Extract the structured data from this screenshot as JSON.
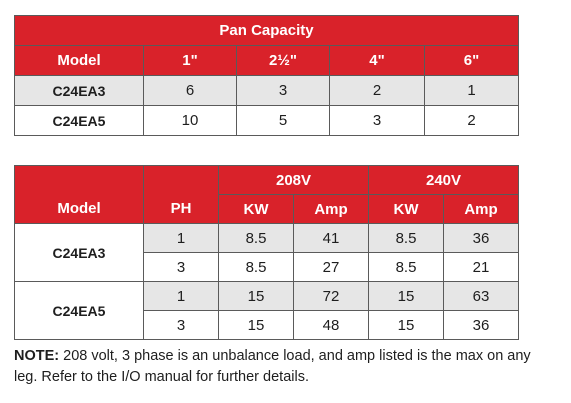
{
  "pan_table": {
    "title": "Pan Capacity",
    "headers": [
      "Model",
      "1\"",
      "2½\"",
      "4\"",
      "6\""
    ],
    "rows": [
      {
        "model": "C24EA3",
        "values": [
          "6",
          "3",
          "2",
          "1"
        ]
      },
      {
        "model": "C24EA5",
        "values": [
          "10",
          "5",
          "3",
          "2"
        ]
      }
    ]
  },
  "elec_table": {
    "voltage_groups": [
      "208V",
      "240V"
    ],
    "headers": {
      "model": "Model",
      "ph": "PH",
      "kw_208": "KW",
      "amp_208": "Amp",
      "kw_240": "KW",
      "amp_240": "Amp"
    },
    "rows": [
      {
        "model": "C24EA3",
        "ph": "1",
        "kw_208": "8.5",
        "amp_208": "41",
        "kw_240": "8.5",
        "amp_240": "36"
      },
      {
        "model": "",
        "ph": "3",
        "kw_208": "8.5",
        "amp_208": "27",
        "kw_240": "8.5",
        "amp_240": "21"
      },
      {
        "model": "C24EA5",
        "ph": "1",
        "kw_208": "15",
        "amp_208": "72",
        "kw_240": "15",
        "amp_240": "63"
      },
      {
        "model": "",
        "ph": "3",
        "kw_208": "15",
        "amp_208": "48",
        "kw_240": "15",
        "amp_240": "36"
      }
    ]
  },
  "note": {
    "label": "NOTE:",
    "text": " 208 volt, 3 phase is an unbalance load, and amp listed is the max on any leg. Refer to the I/O manual for further details."
  },
  "colors": {
    "header_red": "#d9222a",
    "row_gray": "#e6e6e6"
  }
}
